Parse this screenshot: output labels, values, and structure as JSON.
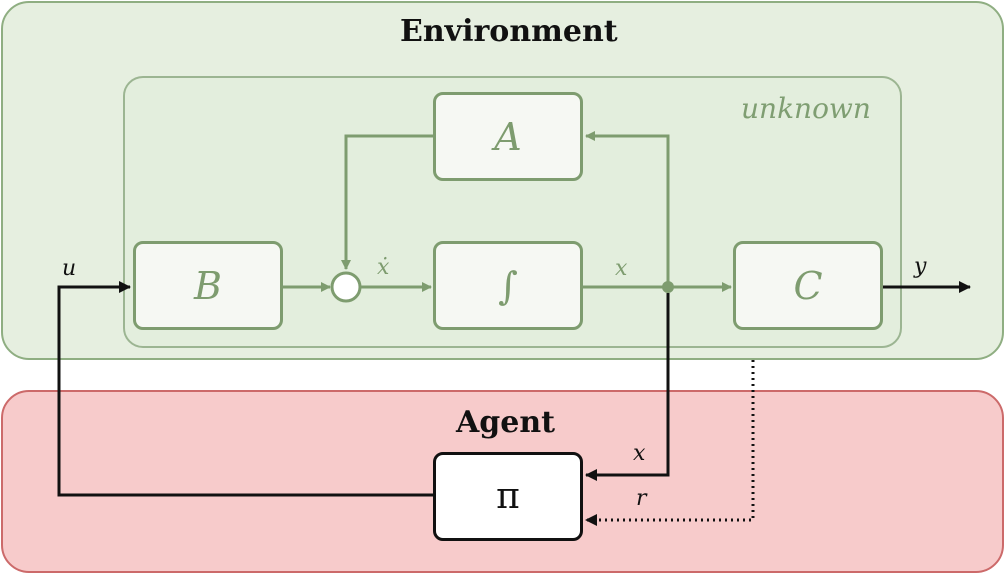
{
  "environment": {
    "title": "Environment",
    "unknown_label": "unknown"
  },
  "agent": {
    "title": "Agent"
  },
  "blocks": {
    "A": "A",
    "B": "B",
    "integrator": "∫",
    "C": "C",
    "policy": "π"
  },
  "signals": {
    "u": "u",
    "x_dot": "ẋ",
    "x_forward": "x",
    "y": "y",
    "x_feedback": "x",
    "r": "r"
  },
  "colors": {
    "environment_fill": "#e6efe0",
    "agent_fill": "#f7cbcb",
    "system_stroke": "#7e9c6f",
    "agent_stroke": "#111111"
  }
}
